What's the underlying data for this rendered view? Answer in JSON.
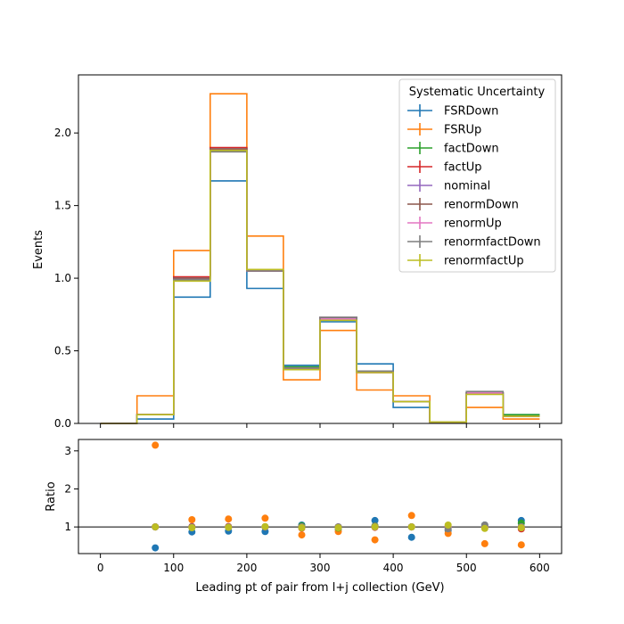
{
  "chart_data": [
    {
      "type": "line",
      "style": "step-histogram",
      "xlabel": "",
      "ylabel": "Events",
      "xlim": [
        -30,
        630
      ],
      "ylim": [
        0,
        2.4
      ],
      "yticks": [
        0.0,
        0.5,
        1.0,
        1.5,
        2.0
      ],
      "ytick_labels": [
        "0.0",
        "0.5",
        "1.0",
        "1.5",
        "2.0"
      ],
      "bin_edges": [
        0,
        50,
        100,
        150,
        200,
        250,
        300,
        350,
        400,
        450,
        500,
        550,
        600
      ],
      "legend": {
        "title": "Systematic Uncertainty",
        "position": "top-right"
      },
      "series": [
        {
          "name": "FSRDown",
          "color": "#1f77b4",
          "values": [
            0.0,
            0.03,
            0.87,
            1.67,
            0.93,
            0.4,
            0.7,
            0.41,
            0.11,
            0.01,
            0.21,
            0.06
          ]
        },
        {
          "name": "FSRUp",
          "color": "#ff7f0e",
          "values": [
            0.0,
            0.19,
            1.19,
            2.27,
            1.29,
            0.3,
            0.64,
            0.23,
            0.19,
            0.01,
            0.11,
            0.03
          ]
        },
        {
          "name": "factDown",
          "color": "#2ca02c",
          "values": [
            0.0,
            0.06,
            0.99,
            1.88,
            1.05,
            0.39,
            0.71,
            0.36,
            0.15,
            0.01,
            0.21,
            0.06
          ]
        },
        {
          "name": "factUp",
          "color": "#d62728",
          "values": [
            0.0,
            0.06,
            1.01,
            1.9,
            1.05,
            0.37,
            0.72,
            0.35,
            0.15,
            0.01,
            0.21,
            0.05
          ]
        },
        {
          "name": "nominal",
          "color": "#9467bd",
          "values": [
            0.0,
            0.06,
            1.0,
            1.89,
            1.05,
            0.38,
            0.73,
            0.35,
            0.15,
            0.01,
            0.21,
            0.05
          ]
        },
        {
          "name": "renormDown",
          "color": "#8c564b",
          "values": [
            0.0,
            0.06,
            1.0,
            1.89,
            1.05,
            0.38,
            0.73,
            0.36,
            0.15,
            0.01,
            0.21,
            0.05
          ]
        },
        {
          "name": "renormUp",
          "color": "#e377c2",
          "values": [
            0.0,
            0.06,
            0.99,
            1.88,
            1.05,
            0.38,
            0.72,
            0.35,
            0.15,
            0.01,
            0.21,
            0.05
          ]
        },
        {
          "name": "renormfactDown",
          "color": "#7f7f7f",
          "values": [
            0.0,
            0.06,
            0.99,
            1.87,
            1.05,
            0.38,
            0.73,
            0.36,
            0.15,
            0.01,
            0.22,
            0.05
          ]
        },
        {
          "name": "renormfactUp",
          "color": "#bcbd22",
          "values": [
            0.0,
            0.06,
            0.98,
            1.88,
            1.06,
            0.37,
            0.71,
            0.35,
            0.15,
            0.01,
            0.2,
            0.05
          ]
        }
      ]
    },
    {
      "type": "scatter",
      "xlabel": "Leading pt of pair from l+j collection (GeV)",
      "ylabel": "Ratio",
      "xlim": [
        -30,
        630
      ],
      "ylim": [
        0.3,
        3.3
      ],
      "xticks": [
        0,
        100,
        200,
        300,
        400,
        500,
        600
      ],
      "xtick_labels": [
        "0",
        "100",
        "200",
        "300",
        "400",
        "500",
        "600"
      ],
      "yticks": [
        1,
        2,
        3
      ],
      "ytick_labels": [
        "1",
        "2",
        "3"
      ],
      "reference_line": 1,
      "x": [
        75,
        125,
        175,
        225,
        275,
        325,
        375,
        425,
        475,
        525,
        575
      ],
      "series": [
        {
          "name": "FSRDown",
          "color": "#1f77b4",
          "values": [
            0.45,
            0.87,
            0.89,
            0.88,
            1.05,
            0.95,
            1.17,
            0.73,
            0.91,
            1.05,
            1.17
          ]
        },
        {
          "name": "FSRUp",
          "color": "#ff7f0e",
          "values": [
            3.15,
            1.19,
            1.21,
            1.23,
            0.79,
            0.88,
            0.66,
            1.3,
            0.83,
            0.56,
            0.53
          ]
        },
        {
          "name": "factDown",
          "color": "#2ca02c",
          "values": [
            1.0,
            0.99,
            0.99,
            1.0,
            1.03,
            0.97,
            1.03,
            1.0,
            1.0,
            1.0,
            1.1
          ]
        },
        {
          "name": "factUp",
          "color": "#d62728",
          "values": [
            1.0,
            1.01,
            1.01,
            1.0,
            0.97,
            0.99,
            0.99,
            1.0,
            1.0,
            1.0,
            0.95
          ]
        },
        {
          "name": "nominal",
          "color": "#9467bd",
          "values": [
            1.0,
            1.0,
            1.0,
            1.0,
            1.0,
            1.0,
            1.0,
            1.0,
            1.0,
            1.0,
            1.0
          ]
        },
        {
          "name": "renormDown",
          "color": "#8c564b",
          "values": [
            1.0,
            1.0,
            1.0,
            1.0,
            1.0,
            1.0,
            1.02,
            1.0,
            1.0,
            1.0,
            1.0
          ]
        },
        {
          "name": "renormUp",
          "color": "#e377c2",
          "values": [
            1.0,
            0.99,
            0.99,
            1.0,
            1.0,
            0.99,
            1.0,
            1.0,
            1.0,
            1.0,
            1.0
          ]
        },
        {
          "name": "renormfactDown",
          "color": "#7f7f7f",
          "values": [
            1.0,
            0.99,
            0.99,
            1.0,
            1.0,
            1.0,
            1.02,
            1.0,
            0.95,
            1.05,
            1.0
          ]
        },
        {
          "name": "renormfactUp",
          "color": "#bcbd22",
          "values": [
            1.0,
            0.98,
            0.99,
            1.01,
            0.98,
            0.98,
            1.0,
            1.0,
            1.05,
            0.96,
            0.98
          ]
        }
      ]
    }
  ]
}
